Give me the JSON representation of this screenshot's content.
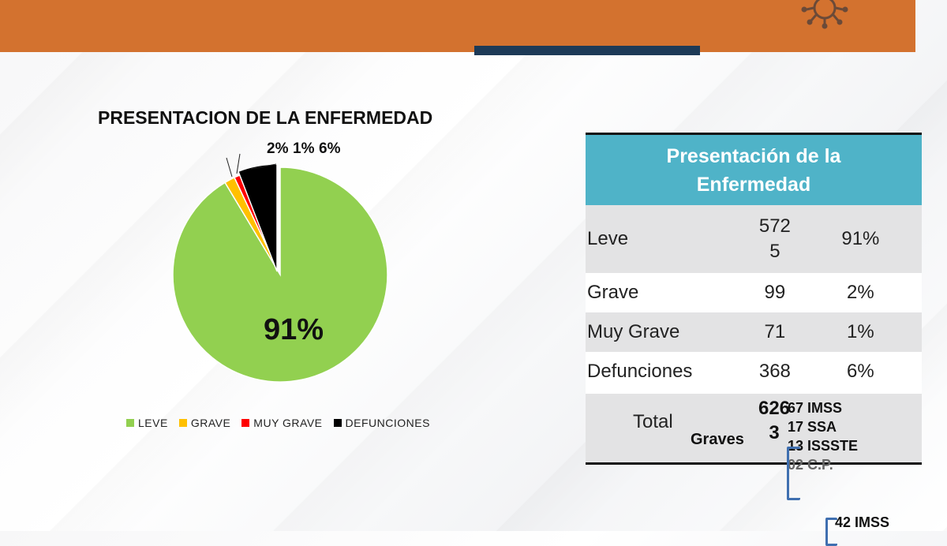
{
  "header": {
    "colors": {
      "bar": "#d3722f",
      "underline": "#1d3a57"
    },
    "icon": "virus-icon"
  },
  "chart_data": {
    "type": "pie",
    "title": "PRESENTACION DE LA ENFERMEDAD",
    "categories": [
      "LEVE",
      "GRAVE",
      "MUY GRAVE",
      "DEFUNCIONES"
    ],
    "values": [
      5725,
      99,
      71,
      368
    ],
    "labels": [
      "91%",
      "2%",
      "1%",
      "6%"
    ],
    "colors": [
      "#92d050",
      "#ffc000",
      "#ff0000",
      "#000000"
    ],
    "legend_position": "bottom"
  },
  "table": {
    "header": "Presentación de la Enfermedad",
    "rows": [
      {
        "label": "Leve",
        "value": "572\n5",
        "pct": "91%"
      },
      {
        "label": "Grave",
        "value": "99",
        "pct": "2%"
      },
      {
        "label": "Muy Grave",
        "value": "71",
        "pct": "1%"
      },
      {
        "label": "Defunciones",
        "value": "368",
        "pct": "6%"
      }
    ],
    "total_label": "Total",
    "total_value": "626\n3"
  },
  "notes": {
    "graves_label": "Graves",
    "graves_lines": [
      "67 IMSS",
      "17 SSA",
      "13 ISSSTE",
      "02 C.P."
    ],
    "bottom_line": "42 IMSS"
  }
}
